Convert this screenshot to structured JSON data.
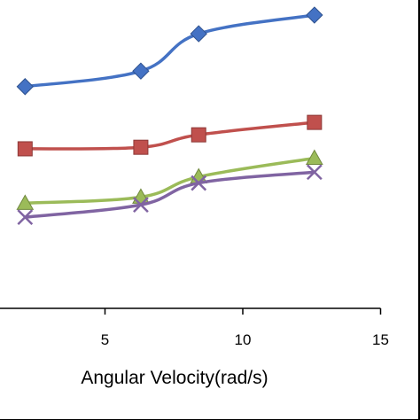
{
  "chart_data": {
    "type": "line",
    "title": "",
    "xlabel": "Angular Velocity(rad/s)",
    "ylabel": "",
    "x_ticks": [
      5,
      10,
      15
    ],
    "xlim": [
      0,
      15
    ],
    "ylim": [
      0,
      1
    ],
    "grid": false,
    "legend": "none",
    "x": [
      2.1,
      6.3,
      8.4,
      12.6
    ],
    "series": [
      {
        "marker": "diamond",
        "color": "#4472C4",
        "values": [
          0.75,
          0.8,
          0.92,
          0.98
        ]
      },
      {
        "marker": "square",
        "color": "#C0504D",
        "values": [
          0.55,
          0.555,
          0.595,
          0.635
        ]
      },
      {
        "marker": "triangle",
        "color": "#9BBB59",
        "values": [
          0.375,
          0.395,
          0.46,
          0.52
        ]
      },
      {
        "marker": "x",
        "color": "#8064A2",
        "values": [
          0.33,
          0.37,
          0.44,
          0.475
        ]
      }
    ]
  }
}
